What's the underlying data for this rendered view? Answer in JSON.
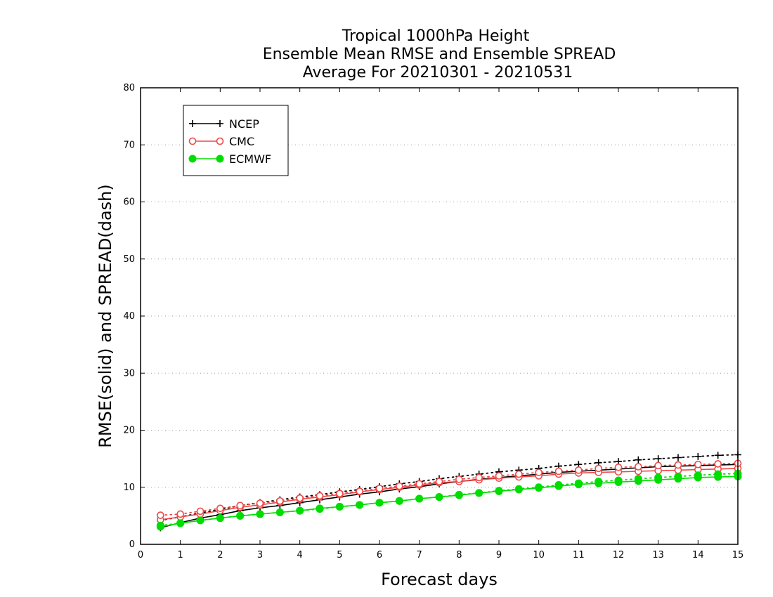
{
  "chart_data": {
    "type": "line",
    "title": [
      "Tropical 1000hPa Height",
      "Ensemble Mean RMSE and Ensemble SPREAD",
      "Average For 20210301 - 20210531"
    ],
    "xlabel": "Forecast days",
    "ylabel": "RMSE(solid) and SPREAD(dash)",
    "xlim": [
      0,
      15
    ],
    "ylim": [
      0,
      80
    ],
    "xticks": [
      0,
      1,
      2,
      3,
      4,
      5,
      6,
      7,
      8,
      9,
      10,
      11,
      12,
      13,
      14,
      15
    ],
    "yticks": [
      0,
      10,
      20,
      30,
      40,
      50,
      60,
      70,
      80
    ],
    "grid": "horizontal dotted",
    "legend_position": "top-left",
    "x": [
      0.5,
      1,
      1.5,
      2,
      2.5,
      3,
      3.5,
      4,
      4.5,
      5,
      5.5,
      6,
      6.5,
      7,
      7.5,
      8,
      8.5,
      9,
      9.5,
      10,
      10.5,
      11,
      11.5,
      12,
      12.5,
      13,
      13.5,
      14,
      14.5,
      15
    ],
    "series": [
      {
        "name": "NCEP",
        "color": "#000000",
        "marker": "plus",
        "rmse": [
          2.9,
          3.8,
          4.6,
          5.2,
          5.9,
          6.4,
          6.8,
          7.3,
          7.8,
          8.3,
          8.8,
          9.2,
          9.7,
          10.1,
          10.6,
          11.0,
          11.4,
          11.7,
          12.0,
          12.3,
          12.6,
          12.8,
          13.0,
          13.2,
          13.4,
          13.6,
          13.7,
          13.8,
          13.9,
          14.0
        ],
        "spread": [
          4.2,
          4.8,
          5.5,
          6.1,
          6.8,
          7.3,
          7.8,
          8.3,
          8.7,
          9.2,
          9.6,
          10.1,
          10.6,
          11.0,
          11.5,
          11.9,
          12.3,
          12.7,
          13.0,
          13.3,
          13.7,
          14.0,
          14.3,
          14.5,
          14.8,
          15.0,
          15.2,
          15.4,
          15.6,
          15.7
        ]
      },
      {
        "name": "CMC",
        "color": "#f04848",
        "marker": "open-circle",
        "rmse": [
          4.3,
          4.8,
          5.3,
          5.9,
          6.5,
          6.9,
          7.4,
          7.9,
          8.3,
          8.7,
          9.2,
          9.6,
          10.0,
          10.4,
          10.8,
          11.0,
          11.3,
          11.6,
          11.8,
          12.0,
          12.3,
          12.5,
          12.6,
          12.7,
          12.8,
          12.9,
          13.0,
          13.1,
          13.2,
          13.3
        ],
        "spread": [
          5.1,
          5.3,
          5.8,
          6.3,
          6.8,
          7.2,
          7.6,
          8.1,
          8.5,
          8.9,
          9.3,
          9.8,
          10.2,
          10.6,
          11.0,
          11.4,
          11.7,
          12.0,
          12.3,
          12.6,
          12.8,
          13.0,
          13.3,
          13.5,
          13.6,
          13.8,
          13.9,
          14.0,
          14.1,
          14.2
        ]
      },
      {
        "name": "ECMWF",
        "color": "#00dd00",
        "marker": "filled-circle",
        "rmse": [
          3.1,
          3.7,
          4.2,
          4.6,
          5.0,
          5.3,
          5.6,
          5.9,
          6.3,
          6.6,
          6.9,
          7.3,
          7.6,
          8.0,
          8.3,
          8.6,
          9.0,
          9.3,
          9.6,
          9.9,
          10.2,
          10.5,
          10.7,
          10.9,
          11.1,
          11.3,
          11.5,
          11.7,
          11.8,
          11.9
        ],
        "spread": [
          3.3,
          3.7,
          4.2,
          4.6,
          5.0,
          5.3,
          5.6,
          5.9,
          6.2,
          6.6,
          6.9,
          7.3,
          7.6,
          8.0,
          8.3,
          8.7,
          9.0,
          9.4,
          9.7,
          10.0,
          10.4,
          10.7,
          11.0,
          11.2,
          11.5,
          11.7,
          11.9,
          12.1,
          12.3,
          12.4
        ]
      }
    ]
  }
}
